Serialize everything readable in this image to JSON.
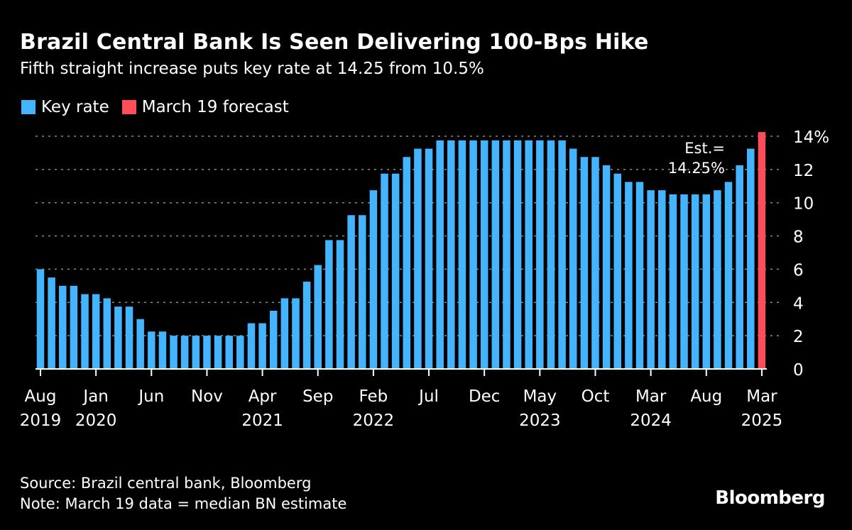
{
  "title": "Brazil Central Bank Is Seen Delivering 100-Bps Hike",
  "subtitle": "Fifth straight increase puts key rate at 14.25 from 10.5%",
  "legend": [
    {
      "label": "Key rate",
      "color": "#44b4ff"
    },
    {
      "label": "March 19 forecast",
      "color": "#ff4d5a"
    }
  ],
  "annotation": {
    "line1": "Est.=",
    "line2": "14.25%"
  },
  "footer": {
    "source": "Source: Brazil central bank, Bloomberg",
    "note": "Note: March 19 data = median BN estimate"
  },
  "logo": "Bloomberg",
  "chart_data": {
    "type": "bar",
    "title": "Brazil Central Bank Is Seen Delivering 100-Bps Hike",
    "subtitle": "Fifth straight increase puts key rate at 14.25 from 10.5%",
    "xlabel": "",
    "ylabel": "",
    "ylim": [
      0,
      14.5
    ],
    "yticks": [
      "0",
      "2",
      "4",
      "6",
      "8",
      "10",
      "12",
      "14%"
    ],
    "ytick_values": [
      0,
      2,
      4,
      6,
      8,
      10,
      12,
      14
    ],
    "grid": true,
    "legend_position": "top-left",
    "series": [
      {
        "name": "Key rate",
        "color": "#44b4ff",
        "values": [
          6,
          5.5,
          5,
          5,
          4.5,
          4.5,
          4.25,
          3.75,
          3.75,
          3,
          2.25,
          2.25,
          2,
          2,
          2,
          2,
          2,
          2,
          2,
          2.75,
          2.75,
          3.5,
          4.25,
          4.25,
          5.25,
          6.25,
          7.75,
          7.75,
          9.25,
          9.25,
          10.75,
          11.75,
          11.75,
          12.75,
          13.25,
          13.25,
          13.75,
          13.75,
          13.75,
          13.75,
          13.75,
          13.75,
          13.75,
          13.75,
          13.75,
          13.75,
          13.75,
          13.75,
          13.25,
          12.75,
          12.75,
          12.25,
          11.75,
          11.25,
          11.25,
          10.75,
          10.75,
          10.5,
          10.5,
          10.5,
          10.5,
          10.75,
          11.25,
          12.25,
          13.25,
          null
        ]
      },
      {
        "name": "March 19 forecast",
        "color": "#ff4d5a",
        "values": [
          null,
          null,
          null,
          null,
          null,
          null,
          null,
          null,
          null,
          null,
          null,
          null,
          null,
          null,
          null,
          null,
          null,
          null,
          null,
          null,
          null,
          null,
          null,
          null,
          null,
          null,
          null,
          null,
          null,
          null,
          null,
          null,
          null,
          null,
          null,
          null,
          null,
          null,
          null,
          null,
          null,
          null,
          null,
          null,
          null,
          null,
          null,
          null,
          null,
          null,
          null,
          null,
          null,
          null,
          null,
          null,
          null,
          null,
          null,
          null,
          null,
          null,
          null,
          null,
          null,
          14.25
        ]
      }
    ],
    "xticks": [
      {
        "index": 0,
        "month": "Aug",
        "year": "2019"
      },
      {
        "index": 5,
        "month": "Jan",
        "year": "2020"
      },
      {
        "index": 10,
        "month": "Jun",
        "year": ""
      },
      {
        "index": 15,
        "month": "Nov",
        "year": ""
      },
      {
        "index": 20,
        "month": "Apr",
        "year": "2021"
      },
      {
        "index": 25,
        "month": "Sep",
        "year": ""
      },
      {
        "index": 30,
        "month": "Feb",
        "year": "2022"
      },
      {
        "index": 35,
        "month": "Jul",
        "year": ""
      },
      {
        "index": 40,
        "month": "Dec",
        "year": ""
      },
      {
        "index": 45,
        "month": "May",
        "year": "2023"
      },
      {
        "index": 50,
        "month": "Oct",
        "year": ""
      },
      {
        "index": 55,
        "month": "Mar",
        "year": "2024"
      },
      {
        "index": 60,
        "month": "Aug",
        "year": ""
      },
      {
        "index": 65,
        "month": "Mar",
        "year": "2025"
      }
    ]
  }
}
